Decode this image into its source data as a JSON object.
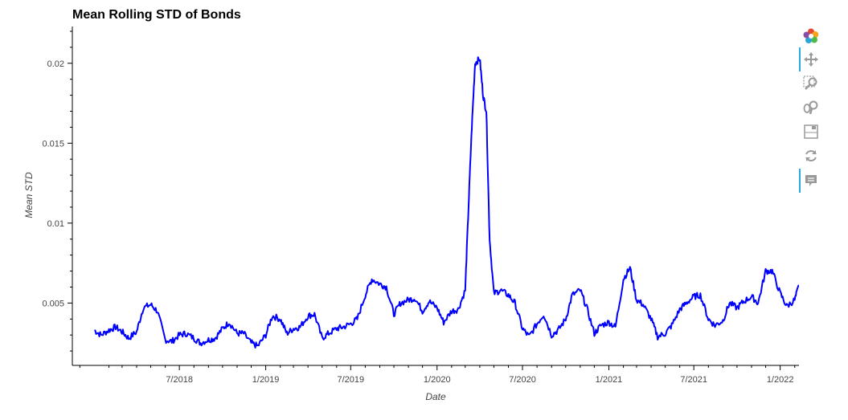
{
  "chart_data": {
    "type": "line",
    "title": "Mean Rolling STD of Bonds",
    "xlabel": "Date",
    "ylabel": "Mean STD",
    "x_ticks": [
      "7/2018",
      "1/2019",
      "7/2019",
      "1/2020",
      "7/2020",
      "1/2021",
      "7/2021",
      "1/2022"
    ],
    "y_ticks": [
      "0.005",
      "0.01",
      "0.015",
      "0.02"
    ],
    "ylim": [
      0.0011,
      0.0223
    ],
    "xlim": [
      "2017-11-15",
      "2022-02-10"
    ],
    "grid": false,
    "series": [
      {
        "color": "#0000ff",
        "x": [
          "2018-01-01",
          "2018-01-15",
          "2018-02-01",
          "2018-02-15",
          "2018-03-01",
          "2018-03-15",
          "2018-04-01",
          "2018-04-15",
          "2018-05-01",
          "2018-05-15",
          "2018-06-01",
          "2018-06-15",
          "2018-07-01",
          "2018-07-15",
          "2018-08-01",
          "2018-08-15",
          "2018-09-01",
          "2018-09-15",
          "2018-10-01",
          "2018-10-15",
          "2018-11-01",
          "2018-11-15",
          "2018-12-01",
          "2018-12-15",
          "2019-01-01",
          "2019-01-15",
          "2019-02-01",
          "2019-02-15",
          "2019-03-01",
          "2019-03-15",
          "2019-04-01",
          "2019-04-15",
          "2019-05-01",
          "2019-05-15",
          "2019-06-01",
          "2019-06-15",
          "2019-07-01",
          "2019-07-15",
          "2019-08-01",
          "2019-08-15",
          "2019-09-01",
          "2019-09-15",
          "2019-10-01",
          "2019-10-15",
          "2019-11-01",
          "2019-11-15",
          "2019-12-01",
          "2019-12-15",
          "2020-01-01",
          "2020-01-15",
          "2020-02-01",
          "2020-02-15",
          "2020-03-01",
          "2020-03-08",
          "2020-03-15",
          "2020-03-22",
          "2020-04-01",
          "2020-04-08",
          "2020-04-15",
          "2020-04-22",
          "2020-05-01",
          "2020-05-15",
          "2020-06-01",
          "2020-06-15",
          "2020-07-01",
          "2020-07-15",
          "2020-08-01",
          "2020-08-15",
          "2020-09-01",
          "2020-09-15",
          "2020-10-01",
          "2020-10-15",
          "2020-11-01",
          "2020-11-15",
          "2020-12-01",
          "2020-12-15",
          "2021-01-01",
          "2021-01-15",
          "2021-02-01",
          "2021-02-15",
          "2021-03-01",
          "2021-03-15",
          "2021-04-01",
          "2021-04-15",
          "2021-05-01",
          "2021-05-15",
          "2021-06-01",
          "2021-06-15",
          "2021-07-01",
          "2021-07-15",
          "2021-08-01",
          "2021-08-15",
          "2021-09-01",
          "2021-09-15",
          "2021-10-01",
          "2021-10-15",
          "2021-11-01",
          "2021-11-15",
          "2021-12-01",
          "2021-12-15",
          "2022-01-01",
          "2022-01-15",
          "2022-02-01",
          "2022-02-10"
        ],
        "y": [
          0.0033,
          0.003,
          0.0033,
          0.0035,
          0.0032,
          0.0028,
          0.0032,
          0.0047,
          0.0049,
          0.0045,
          0.0027,
          0.0026,
          0.003,
          0.0031,
          0.0028,
          0.0025,
          0.0027,
          0.0028,
          0.0034,
          0.0038,
          0.0031,
          0.0031,
          0.0025,
          0.0023,
          0.003,
          0.0042,
          0.004,
          0.0031,
          0.0034,
          0.0035,
          0.0042,
          0.0043,
          0.0028,
          0.0031,
          0.0034,
          0.0035,
          0.0037,
          0.004,
          0.0055,
          0.0065,
          0.0062,
          0.006,
          0.0043,
          0.005,
          0.0052,
          0.0053,
          0.0045,
          0.0051,
          0.0047,
          0.0038,
          0.0045,
          0.0046,
          0.0058,
          0.011,
          0.016,
          0.02,
          0.0203,
          0.018,
          0.017,
          0.009,
          0.0056,
          0.0058,
          0.0055,
          0.005,
          0.0034,
          0.0029,
          0.0037,
          0.0043,
          0.003,
          0.0033,
          0.004,
          0.0055,
          0.0058,
          0.0047,
          0.0031,
          0.0036,
          0.0038,
          0.0035,
          0.0065,
          0.0072,
          0.0052,
          0.0049,
          0.004,
          0.0029,
          0.0031,
          0.0036,
          0.0046,
          0.005,
          0.0054,
          0.0055,
          0.004,
          0.0036,
          0.0039,
          0.005,
          0.0047,
          0.0051,
          0.0054,
          0.005,
          0.007,
          0.007,
          0.0056,
          0.0048,
          0.0052,
          0.0061
        ]
      }
    ]
  },
  "toolbar": {
    "tools": [
      "bokeh-logo-icon",
      "pan-icon",
      "box-zoom-icon",
      "wheel-zoom-icon",
      "save-icon",
      "reset-icon",
      "hover-icon"
    ]
  }
}
